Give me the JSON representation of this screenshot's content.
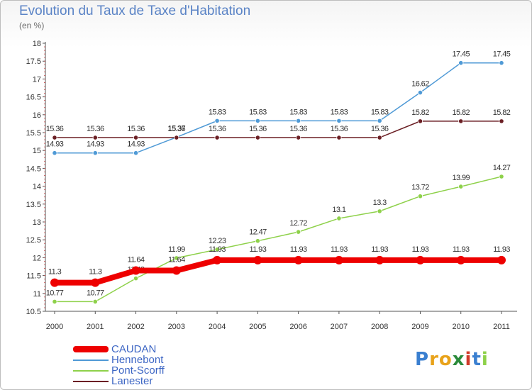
{
  "header": {
    "title": "Evolution du Taux de Taxe d'Habitation",
    "subtitle": "(en %)"
  },
  "chart_data": {
    "type": "line",
    "title": "Evolution du Taux de Taxe d'Habitation",
    "subtitle": "(en %)",
    "x": [
      2000,
      2001,
      2002,
      2003,
      2004,
      2005,
      2006,
      2007,
      2008,
      2009,
      2010,
      2011
    ],
    "ylim": [
      10.5,
      18
    ],
    "yticks": [
      10.5,
      11,
      11.5,
      12,
      12.5,
      13,
      13.5,
      14,
      14.5,
      15,
      15.5,
      16,
      16.5,
      17,
      17.5,
      18
    ],
    "grid": false,
    "legend_position": "bottom-left",
    "series": [
      {
        "name": "CAUDAN",
        "color": "#ee0000",
        "emphasis": true,
        "values": [
          11.3,
          11.3,
          11.64,
          11.64,
          11.93,
          11.93,
          11.93,
          11.93,
          11.93,
          11.93,
          11.93,
          11.93
        ],
        "labels": [
          "11.3",
          "11.3",
          "11.64",
          "11.64",
          "11.93",
          "11.93",
          "11.93",
          "11.93",
          "11.93",
          "11.93",
          "11.93",
          "11.93"
        ]
      },
      {
        "name": "Hennebont",
        "color": "#4f9ad6",
        "values": [
          14.93,
          14.93,
          14.93,
          15.37,
          15.83,
          15.83,
          15.83,
          15.83,
          15.83,
          16.62,
          17.45,
          17.45
        ],
        "labels": [
          "14.93",
          "14.93",
          "14.93",
          "15.37",
          "15.83",
          "15.83",
          "15.83",
          "15.83",
          "15.83",
          "16.62",
          "17.45",
          "17.45"
        ]
      },
      {
        "name": "Pont-Scorff",
        "color": "#8ed14a",
        "values": [
          10.77,
          10.77,
          11.42,
          11.99,
          12.23,
          12.47,
          12.72,
          13.1,
          13.3,
          13.72,
          13.99,
          14.27
        ],
        "labels": [
          "10.77",
          "10.77",
          "11.42",
          "11.99",
          "12.23",
          "12.47",
          "12.72",
          "13.1",
          "13.3",
          "13.72",
          "13.99",
          "14.27"
        ]
      },
      {
        "name": "Lanester",
        "color": "#6b1f24",
        "values": [
          15.36,
          15.36,
          15.36,
          15.36,
          15.36,
          15.36,
          15.36,
          15.36,
          15.36,
          15.82,
          15.82,
          15.82
        ],
        "labels": [
          "15.36",
          "15.36",
          "15.36",
          "15.36",
          "15.36",
          "15.36",
          "15.36",
          "15.36",
          "15.36",
          "15.82",
          "15.82",
          "15.82"
        ]
      }
    ]
  },
  "legend": {
    "items": [
      {
        "label": "CAUDAN",
        "color": "#ee0000"
      },
      {
        "label": "Hennebont",
        "color": "#4f9ad6"
      },
      {
        "label": "Pont-Scorff",
        "color": "#8ed14a"
      },
      {
        "label": "Lanester",
        "color": "#6b1f24"
      }
    ]
  },
  "logo": {
    "letters": [
      "P",
      "r",
      "o",
      "x",
      "i",
      "t",
      "i"
    ],
    "colors": [
      "#3a7fd0",
      "#e8a21a",
      "#e8a21a",
      "#2a8a3a",
      "#d03a2a",
      "#3a7fd0",
      "#8ed14a"
    ]
  }
}
